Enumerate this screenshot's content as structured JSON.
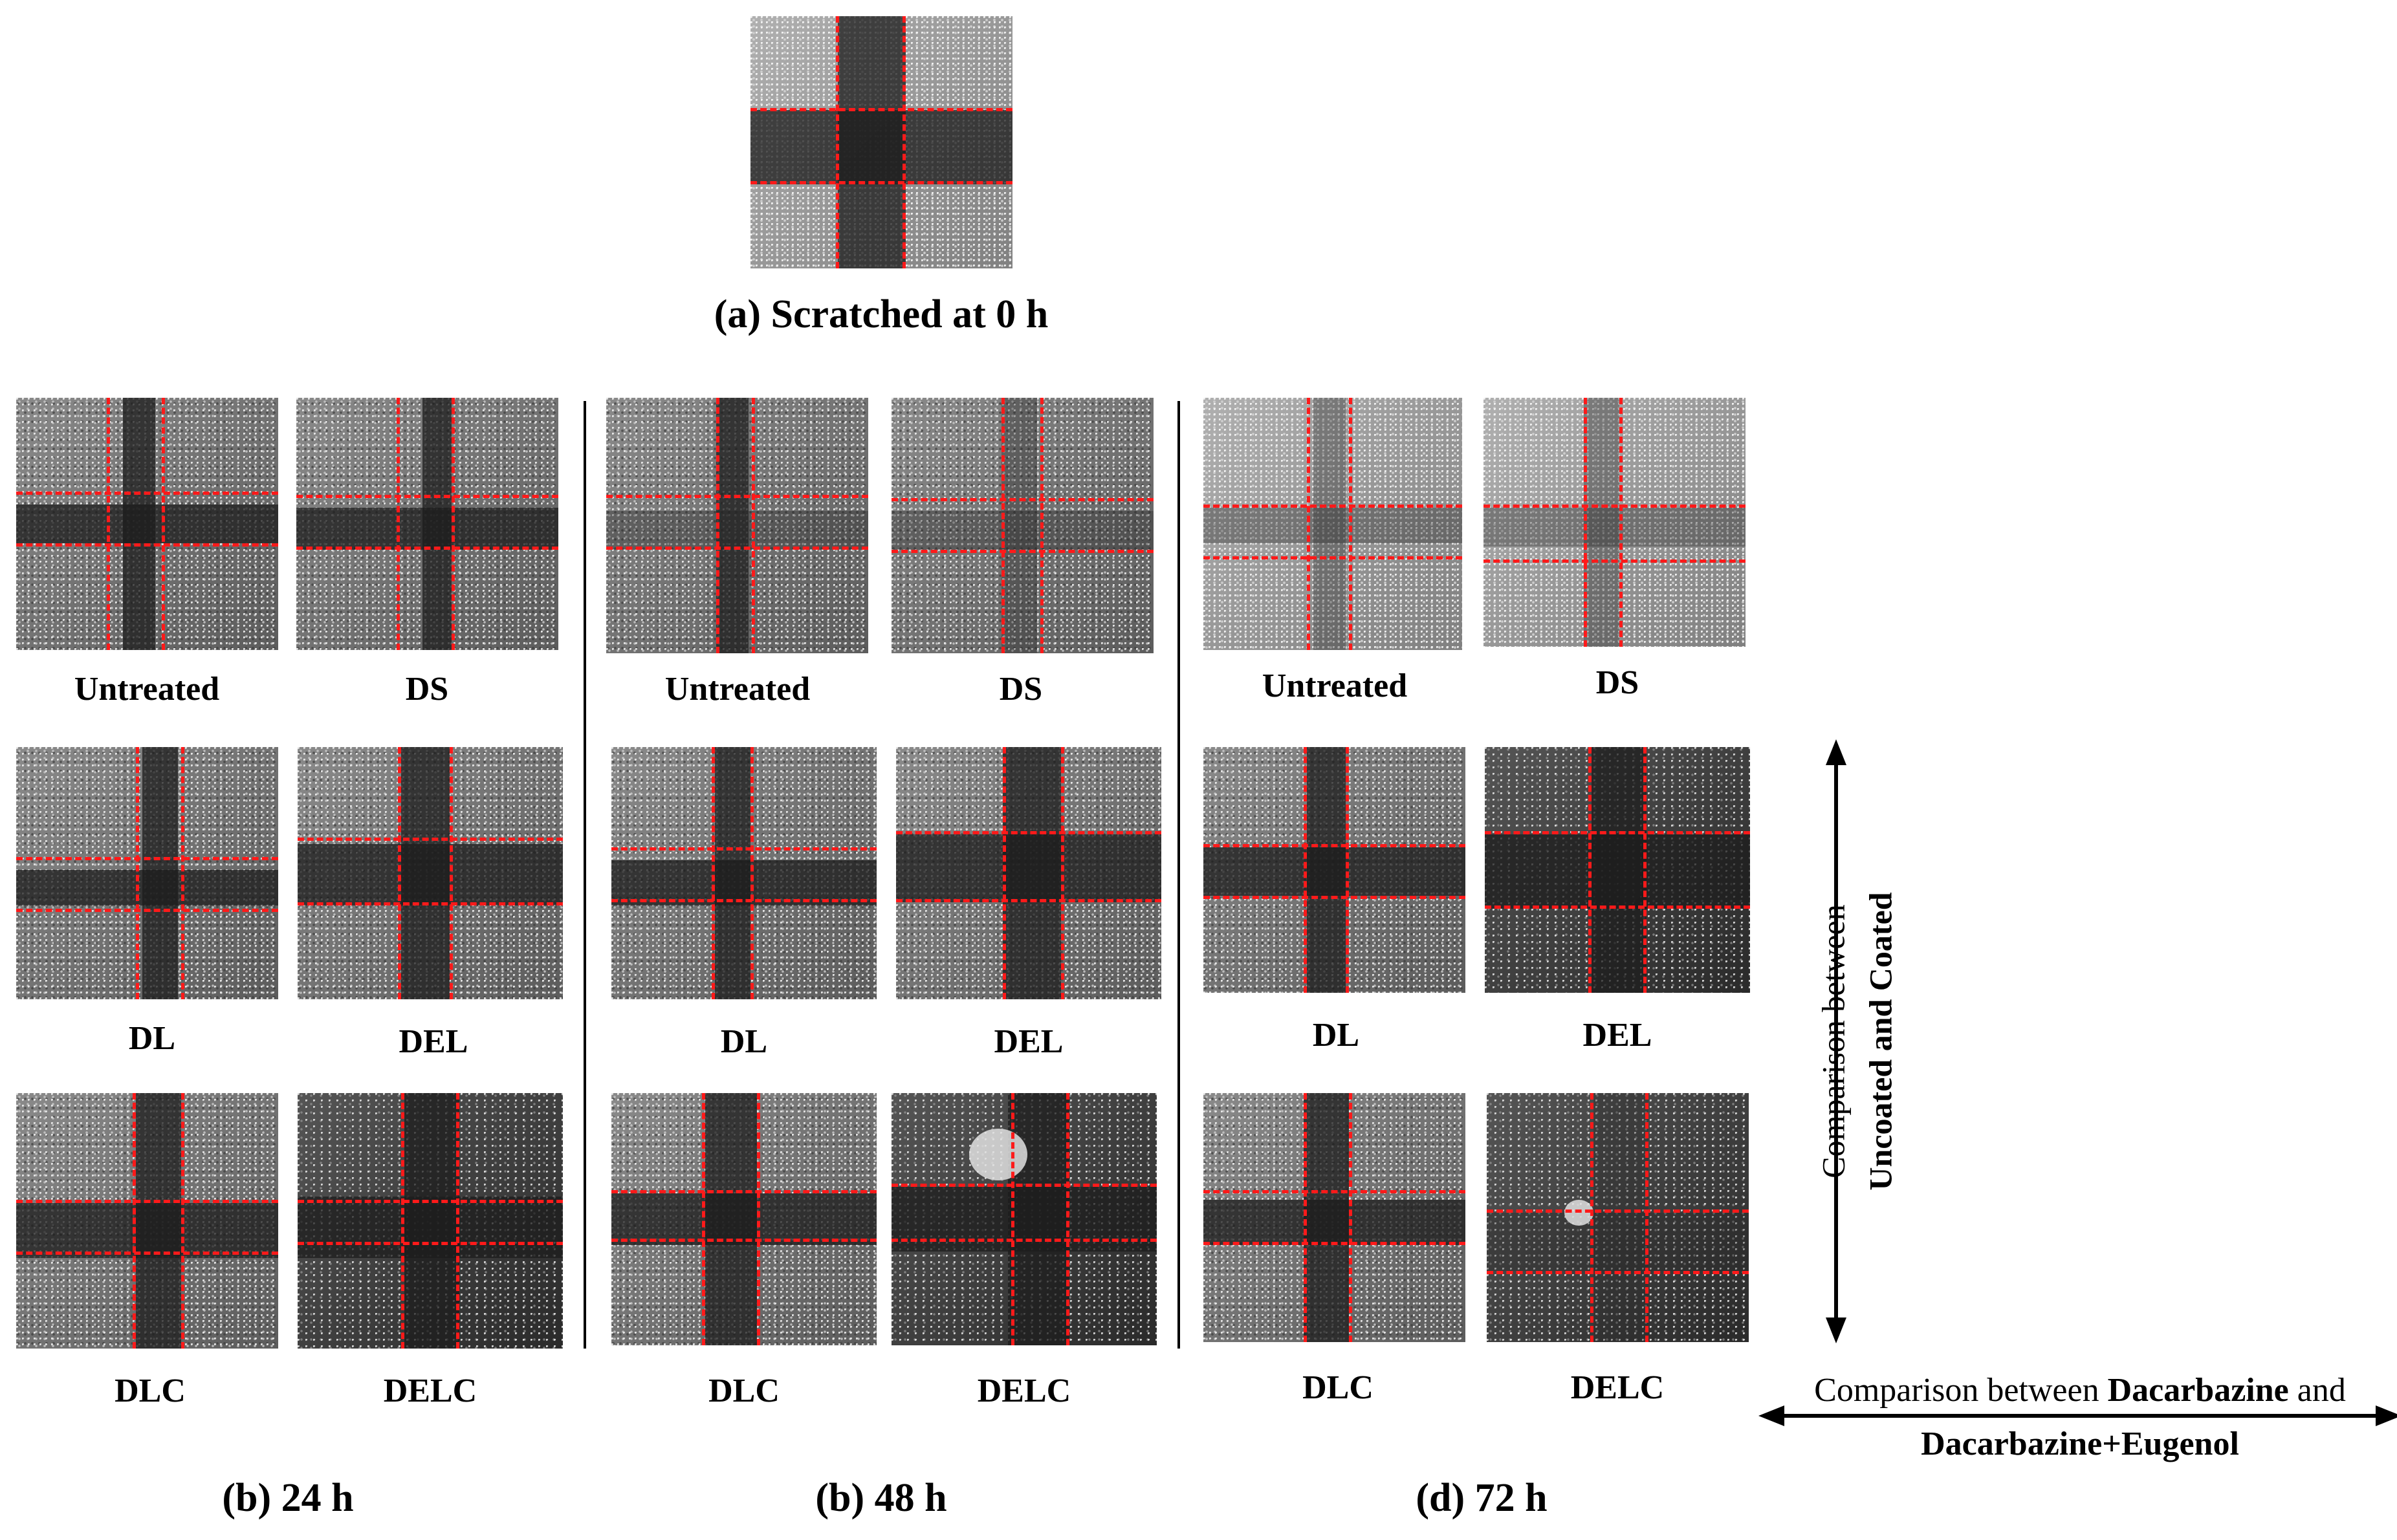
{
  "figure": {
    "panel_a_caption": "(a) Scratched at 0 h",
    "section_b_caption": "(b) 24 h",
    "section_c_caption": "(b) 48 h",
    "section_d_caption": "(d) 72 h"
  },
  "sample_labels": {
    "untreated": "Untreated",
    "ds": "DS",
    "dl": "DL",
    "del": "DEL",
    "dlc": "DLC",
    "delc": "DELC"
  },
  "vertical_annotation": {
    "line1": "Comparison between",
    "line2": "Uncoated and Coated"
  },
  "horizontal_annotation": {
    "prefix": "Comparison between ",
    "bold1": "Dacarbazine",
    "suffix": " and",
    "line2": "Dacarbazine+Eugenol"
  }
}
